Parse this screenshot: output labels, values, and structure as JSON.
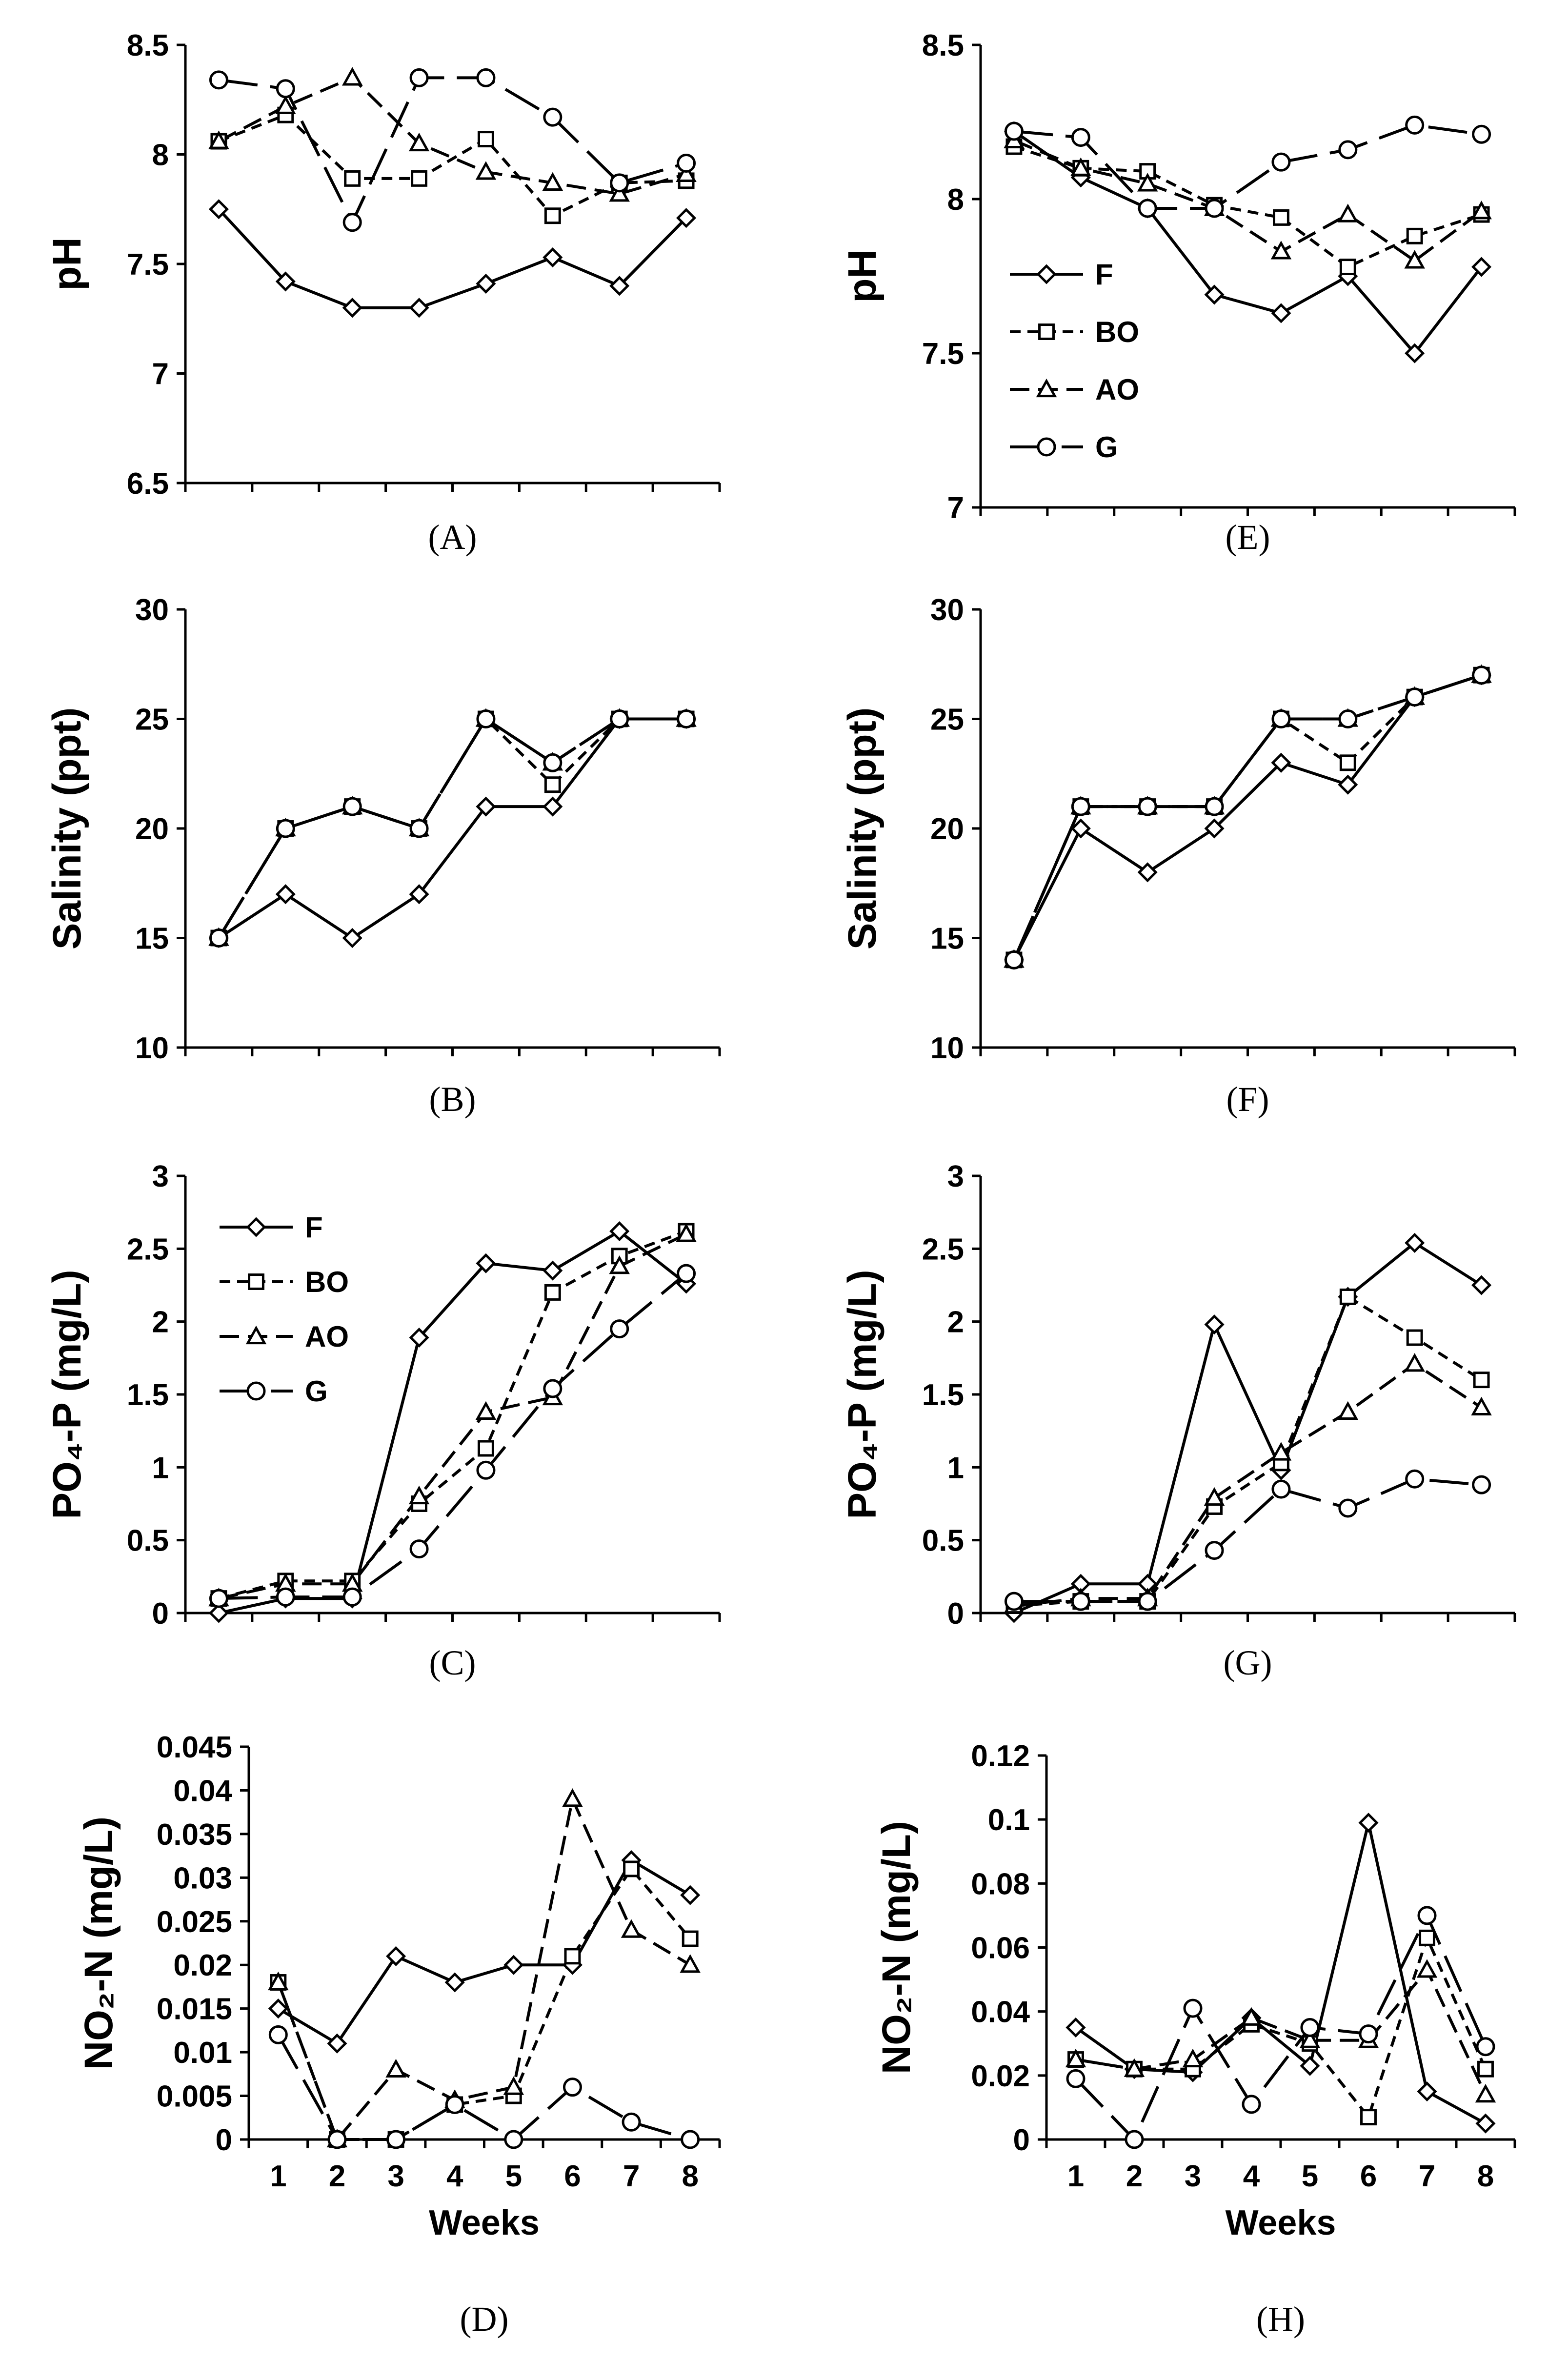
{
  "series_styles": {
    "F": {
      "marker": "diamond",
      "dash": "solid"
    },
    "BO": {
      "marker": "square",
      "dash": "short"
    },
    "AO": {
      "marker": "triangle",
      "dash": "medium"
    },
    "G": {
      "marker": "circle",
      "dash": "long"
    }
  },
  "colors": {
    "ink": "#000000",
    "background": "#ffffff",
    "marker_fill": "#ffffff"
  },
  "chart_data": [
    {
      "id": "A",
      "panel_label": "(A)",
      "type": "line",
      "title": "",
      "ylabel": "pH",
      "xlabel": "",
      "ylim": [
        6.5,
        8.5
      ],
      "yticks": [
        6.5,
        7,
        7.5,
        8,
        8.5
      ],
      "ytick_labels": [
        "6.5",
        "7",
        "7.5",
        "8",
        "8.5"
      ],
      "x": [
        1,
        2,
        3,
        4,
        5,
        6,
        7,
        8
      ],
      "xtick_labels": [],
      "legend": false,
      "series": [
        {
          "name": "F",
          "values": [
            7.75,
            7.42,
            7.3,
            7.3,
            7.41,
            7.53,
            7.4,
            7.71
          ]
        },
        {
          "name": "BO",
          "values": [
            8.06,
            8.18,
            7.89,
            7.89,
            8.07,
            7.72,
            7.87,
            7.88
          ]
        },
        {
          "name": "AO",
          "values": [
            8.06,
            8.22,
            8.35,
            8.05,
            7.92,
            7.87,
            7.82,
            7.91
          ]
        },
        {
          "name": "G",
          "values": [
            8.34,
            8.3,
            7.69,
            8.35,
            8.35,
            8.17,
            7.87,
            7.96
          ]
        }
      ]
    },
    {
      "id": "B",
      "panel_label": "(B)",
      "type": "line",
      "title": "",
      "ylabel": "Salinity (ppt)",
      "xlabel": "",
      "ylim": [
        10,
        30
      ],
      "yticks": [
        10,
        15,
        20,
        25,
        30
      ],
      "ytick_labels": [
        "10",
        "15",
        "20",
        "25",
        "30"
      ],
      "x": [
        1,
        2,
        3,
        4,
        5,
        6,
        7,
        8
      ],
      "xtick_labels": [],
      "legend": false,
      "series": [
        {
          "name": "F",
          "values": [
            15,
            17,
            15,
            17,
            21,
            21,
            25,
            25
          ]
        },
        {
          "name": "BO",
          "values": [
            15,
            20,
            21,
            20,
            25,
            22,
            25,
            25
          ]
        },
        {
          "name": "AO",
          "values": [
            15,
            20,
            21,
            20,
            25,
            23,
            25,
            25
          ]
        },
        {
          "name": "G",
          "values": [
            15,
            20,
            21,
            20,
            25,
            23,
            25,
            25
          ]
        }
      ]
    },
    {
      "id": "C",
      "panel_label": "(C)",
      "type": "line",
      "title": "",
      "ylabel": "PO₄-P (mg/L)",
      "xlabel": "",
      "ylim": [
        0,
        3
      ],
      "yticks": [
        0,
        0.5,
        1,
        1.5,
        2,
        2.5,
        3
      ],
      "ytick_labels": [
        "0",
        "0.5",
        "1",
        "1.5",
        "2",
        "2.5",
        "3"
      ],
      "x": [
        1,
        2,
        3,
        4,
        5,
        6,
        7,
        8
      ],
      "xtick_labels": [],
      "legend": true,
      "legend_position": "top-left",
      "series": [
        {
          "name": "F",
          "values": [
            0.0,
            0.1,
            0.1,
            1.89,
            2.4,
            2.35,
            2.62,
            2.26
          ]
        },
        {
          "name": "BO",
          "values": [
            0.1,
            0.22,
            0.22,
            0.75,
            1.13,
            2.2,
            2.45,
            2.62
          ]
        },
        {
          "name": "AO",
          "values": [
            0.1,
            0.2,
            0.2,
            0.8,
            1.38,
            1.48,
            2.38,
            2.6
          ]
        },
        {
          "name": "G",
          "values": [
            0.1,
            0.11,
            0.11,
            0.44,
            0.98,
            1.54,
            1.95,
            2.33
          ]
        }
      ]
    },
    {
      "id": "D",
      "panel_label": "(D)",
      "type": "line",
      "title": "",
      "ylabel": "NO₂-N (mg/L)",
      "xlabel": "Weeks",
      "ylim": [
        0,
        0.045
      ],
      "yticks": [
        0,
        0.005,
        0.01,
        0.015,
        0.02,
        0.025,
        0.03,
        0.035,
        0.04,
        0.045
      ],
      "ytick_labels": [
        "0",
        "0.005",
        "0.01",
        "0.015",
        "0.02",
        "0.025",
        "0.03",
        "0.035",
        "0.04",
        "0.045"
      ],
      "x": [
        1,
        2,
        3,
        4,
        5,
        6,
        7,
        8
      ],
      "xtick_labels": [
        "1",
        "2",
        "3",
        "4",
        "5",
        "6",
        "7",
        "8"
      ],
      "legend": false,
      "series": [
        {
          "name": "F",
          "values": [
            0.015,
            0.011,
            0.021,
            0.018,
            0.02,
            0.02,
            0.032,
            0.028
          ]
        },
        {
          "name": "BO",
          "values": [
            0.018,
            0.0,
            0.0,
            0.004,
            0.005,
            0.021,
            0.031,
            0.023
          ]
        },
        {
          "name": "AO",
          "values": [
            0.018,
            0.0,
            0.008,
            0.0045,
            0.006,
            0.039,
            0.024,
            0.02
          ]
        },
        {
          "name": "G",
          "values": [
            0.012,
            0.0,
            0.0,
            0.004,
            0.0,
            0.006,
            0.002,
            0.0
          ]
        }
      ]
    },
    {
      "id": "E",
      "panel_label": "(E)",
      "type": "line",
      "title": "",
      "ylabel": "pH",
      "xlabel": "",
      "ylim": [
        7,
        8.5
      ],
      "yticks": [
        7,
        7.5,
        8,
        8.5
      ],
      "ytick_labels": [
        "7",
        "7.5",
        "8",
        "8.5"
      ],
      "x": [
        1,
        2,
        3,
        4,
        5,
        6,
        7,
        8
      ],
      "xtick_labels": [],
      "legend": true,
      "legend_position": "middle-left",
      "series": [
        {
          "name": "F",
          "values": [
            8.22,
            8.07,
            7.97,
            7.69,
            7.63,
            7.75,
            7.5,
            7.78
          ]
        },
        {
          "name": "BO",
          "values": [
            8.17,
            8.1,
            8.09,
            7.98,
            7.94,
            7.78,
            7.88,
            7.95
          ]
        },
        {
          "name": "AO",
          "values": [
            8.19,
            8.1,
            8.05,
            7.97,
            7.83,
            7.95,
            7.8,
            7.96
          ]
        },
        {
          "name": "G",
          "values": [
            8.22,
            8.2,
            7.97,
            7.97,
            8.12,
            8.16,
            8.24,
            8.21
          ]
        }
      ]
    },
    {
      "id": "F",
      "panel_label": "(F)",
      "type": "line",
      "title": "",
      "ylabel": "Salinity (ppt)",
      "xlabel": "",
      "ylim": [
        10,
        30
      ],
      "yticks": [
        10,
        15,
        20,
        25,
        30
      ],
      "ytick_labels": [
        "10",
        "15",
        "20",
        "25",
        "30"
      ],
      "x": [
        1,
        2,
        3,
        4,
        5,
        6,
        7,
        8
      ],
      "xtick_labels": [],
      "legend": false,
      "series": [
        {
          "name": "F",
          "values": [
            14,
            20,
            18,
            20,
            23,
            22,
            26,
            27
          ]
        },
        {
          "name": "BO",
          "values": [
            14,
            21,
            21,
            21,
            25,
            23,
            26,
            27
          ]
        },
        {
          "name": "AO",
          "values": [
            14,
            21,
            21,
            21,
            25,
            25,
            26,
            27
          ]
        },
        {
          "name": "G",
          "values": [
            14,
            21,
            21,
            21,
            25,
            25,
            26,
            27
          ]
        }
      ]
    },
    {
      "id": "G",
      "panel_label": "(G)",
      "type": "line",
      "title": "",
      "ylabel": "PO₄-P (mg/L)",
      "xlabel": "",
      "ylim": [
        0,
        3
      ],
      "yticks": [
        0,
        0.5,
        1,
        1.5,
        2,
        2.5,
        3
      ],
      "ytick_labels": [
        "0",
        "0.5",
        "1",
        "1.5",
        "2",
        "2.5",
        "3"
      ],
      "x": [
        1,
        2,
        3,
        4,
        5,
        6,
        7,
        8
      ],
      "xtick_labels": [],
      "legend": false,
      "series": [
        {
          "name": "F",
          "values": [
            0.0,
            0.2,
            0.2,
            1.98,
            0.98,
            2.17,
            2.54,
            2.25
          ]
        },
        {
          "name": "BO",
          "values": [
            0.05,
            0.08,
            0.08,
            0.73,
            1.03,
            2.17,
            1.89,
            1.6
          ]
        },
        {
          "name": "AO",
          "values": [
            0.05,
            0.1,
            0.1,
            0.79,
            1.1,
            1.38,
            1.71,
            1.41
          ]
        },
        {
          "name": "G",
          "values": [
            0.08,
            0.08,
            0.08,
            0.43,
            0.85,
            0.72,
            0.92,
            0.88
          ]
        }
      ]
    },
    {
      "id": "H",
      "panel_label": "(H)",
      "type": "line",
      "title": "",
      "ylabel": "NO₂-N (mg/L)",
      "xlabel": "Weeks",
      "ylim": [
        0,
        0.12
      ],
      "yticks": [
        0,
        0.02,
        0.04,
        0.06,
        0.08,
        0.1,
        0.12
      ],
      "ytick_labels": [
        "0",
        "0.02",
        "0.04",
        "0.06",
        "0.08",
        "0.1",
        "0.12"
      ],
      "x": [
        1,
        2,
        3,
        4,
        5,
        6,
        7,
        8
      ],
      "xtick_labels": [
        "1",
        "2",
        "3",
        "4",
        "5",
        "6",
        "7",
        "8"
      ],
      "legend": false,
      "series": [
        {
          "name": "F",
          "values": [
            0.035,
            0.022,
            0.021,
            0.038,
            0.023,
            0.099,
            0.015,
            0.005
          ]
        },
        {
          "name": "BO",
          "values": [
            0.025,
            0.022,
            0.022,
            0.036,
            0.03,
            0.007,
            0.063,
            0.022
          ]
        },
        {
          "name": "AO",
          "values": [
            0.025,
            0.022,
            0.025,
            0.038,
            0.031,
            0.031,
            0.053,
            0.014
          ]
        },
        {
          "name": "G",
          "values": [
            0.019,
            0.0,
            0.041,
            0.011,
            0.035,
            0.033,
            0.07,
            0.029
          ]
        }
      ]
    }
  ]
}
